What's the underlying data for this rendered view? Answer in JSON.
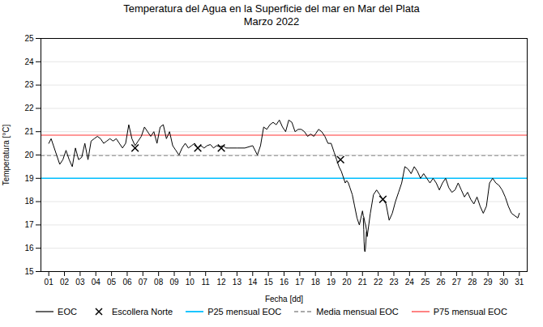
{
  "chart_data": {
    "type": "line",
    "title": "Temperatura del Agua en la Superficie del mar en Mar del Plata\nMarzo 2022",
    "xlabel": "Fecha [dd]",
    "ylabel": "Temperatura [°C]",
    "xlim": [
      0.5,
      31.5
    ],
    "ylim": [
      15,
      25
    ],
    "xticks": [
      {
        "value": 1,
        "label": "01"
      },
      {
        "value": 2,
        "label": "02"
      },
      {
        "value": 3,
        "label": "03"
      },
      {
        "value": 4,
        "label": "04"
      },
      {
        "value": 5,
        "label": "05"
      },
      {
        "value": 6,
        "label": "06"
      },
      {
        "value": 7,
        "label": "07"
      },
      {
        "value": 8,
        "label": "08"
      },
      {
        "value": 9,
        "label": "09"
      },
      {
        "value": 10,
        "label": "10"
      },
      {
        "value": 11,
        "label": "11"
      },
      {
        "value": 12,
        "label": "12"
      },
      {
        "value": 13,
        "label": "13"
      },
      {
        "value": 14,
        "label": "14"
      },
      {
        "value": 15,
        "label": "15"
      },
      {
        "value": 16,
        "label": "16"
      },
      {
        "value": 17,
        "label": "17"
      },
      {
        "value": 18,
        "label": "18"
      },
      {
        "value": 19,
        "label": "19"
      },
      {
        "value": 20,
        "label": "20"
      },
      {
        "value": 21,
        "label": "21"
      },
      {
        "value": 22,
        "label": "22"
      },
      {
        "value": 23,
        "label": "23"
      },
      {
        "value": 24,
        "label": "24"
      },
      {
        "value": 25,
        "label": "25"
      },
      {
        "value": 26,
        "label": "26"
      },
      {
        "value": 27,
        "label": "27"
      },
      {
        "value": 28,
        "label": "28"
      },
      {
        "value": 29,
        "label": "29"
      },
      {
        "value": 30,
        "label": "30"
      },
      {
        "value": 31,
        "label": "31"
      }
    ],
    "yticks": [
      15,
      16,
      17,
      18,
      19,
      20,
      21,
      22,
      23,
      24,
      25
    ],
    "grid": "y",
    "legend": "bottom",
    "series": [
      {
        "name": "EOC",
        "type": "line",
        "color": "#000000",
        "x": [
          1.0,
          1.15,
          1.3,
          1.5,
          1.7,
          1.9,
          2.1,
          2.3,
          2.5,
          2.7,
          2.9,
          3.1,
          3.3,
          3.5,
          3.7,
          3.9,
          4.1,
          4.3,
          4.5,
          4.7,
          4.9,
          5.1,
          5.3,
          5.5,
          5.7,
          5.9,
          6.1,
          6.3,
          6.5,
          6.7,
          6.9,
          7.1,
          7.3,
          7.5,
          7.7,
          7.9,
          8.1,
          8.3,
          8.5,
          8.7,
          8.9,
          9.1,
          9.3,
          9.5,
          9.7,
          9.9,
          10.1,
          10.3,
          10.5,
          10.7,
          10.9,
          11.1,
          11.3,
          11.5,
          11.7,
          11.9,
          12.1,
          12.3,
          12.5,
          13.0,
          13.5,
          14.0,
          14.3,
          14.5,
          14.7,
          14.9,
          15.1,
          15.3,
          15.5,
          15.7,
          15.9,
          16.1,
          16.3,
          16.5,
          16.7,
          16.9,
          17.1,
          17.3,
          17.5,
          17.7,
          17.9,
          18.0,
          18.2,
          18.4,
          18.6,
          18.8,
          19.0,
          19.2,
          19.35,
          19.5,
          19.65,
          19.8,
          19.9,
          20.0,
          20.1,
          20.2,
          20.35,
          20.5,
          20.65,
          20.8,
          20.9,
          21.0,
          21.05,
          21.1,
          21.15,
          21.2,
          21.25,
          21.3,
          21.4,
          21.5,
          21.7,
          21.9,
          22.1,
          22.3,
          22.5,
          22.7,
          22.9,
          23.1,
          23.3,
          23.5,
          23.7,
          23.9,
          24.1,
          24.3,
          24.5,
          24.7,
          24.9,
          25.1,
          25.3,
          25.5,
          25.7,
          25.9,
          26.1,
          26.3,
          26.5,
          26.7,
          26.9,
          27.1,
          27.3,
          27.5,
          27.7,
          27.9,
          28.1,
          28.3,
          28.5,
          28.7,
          28.9,
          29.1,
          29.3,
          29.5,
          29.7,
          29.9,
          30.1,
          30.3,
          30.5,
          30.7,
          30.9,
          31.0
        ],
        "values": [
          20.5,
          20.7,
          20.4,
          20.0,
          19.6,
          19.8,
          20.2,
          19.8,
          19.5,
          20.3,
          19.8,
          19.9,
          20.5,
          19.8,
          20.6,
          20.7,
          20.8,
          20.7,
          20.5,
          20.6,
          20.7,
          20.6,
          20.7,
          20.5,
          20.3,
          20.5,
          21.3,
          20.7,
          20.4,
          20.6,
          20.8,
          21.2,
          21.0,
          20.8,
          21.0,
          20.5,
          21.2,
          21.3,
          20.7,
          21.0,
          20.4,
          20.2,
          20.0,
          20.3,
          20.5,
          20.3,
          20.4,
          20.5,
          20.3,
          20.4,
          20.3,
          20.4,
          20.45,
          20.3,
          20.4,
          20.35,
          20.4,
          20.3,
          20.3,
          20.3,
          20.3,
          20.4,
          20.0,
          20.4,
          21.2,
          21.1,
          21.3,
          21.4,
          21.3,
          21.5,
          21.2,
          21.0,
          21.5,
          21.4,
          21.0,
          21.1,
          21.1,
          21.0,
          20.8,
          20.9,
          20.8,
          20.9,
          21.1,
          21.0,
          20.8,
          20.5,
          20.5,
          20.1,
          19.8,
          19.5,
          19.3,
          19.0,
          18.8,
          18.9,
          18.8,
          18.6,
          18.3,
          17.8,
          17.3,
          17.0,
          17.3,
          17.6,
          17.4,
          17.3,
          17.1,
          17.0,
          16.8,
          16.5,
          17.0,
          17.5,
          18.3,
          18.5,
          18.3,
          18.1,
          17.9,
          17.2,
          17.5,
          18.0,
          18.4,
          18.8,
          19.5,
          19.4,
          19.2,
          19.5,
          19.3,
          19.0,
          19.2,
          19.0,
          18.8,
          19.0,
          18.8,
          18.5,
          18.8,
          19.0,
          18.6,
          18.4,
          18.5,
          18.8,
          18.5,
          18.2,
          18.4,
          18.1,
          17.9,
          18.2,
          17.8,
          17.5,
          17.8,
          18.8,
          19.0,
          18.8,
          18.7,
          18.5,
          18.2,
          17.8,
          17.5,
          17.4,
          17.3,
          17.5
        ]
      },
      {
        "type": "line",
        "color": "#000000",
        "x": [
          21.05,
          21.08,
          21.1,
          21.13,
          21.16,
          21.19,
          21.22,
          21.25
        ],
        "values": [
          17.3,
          16.8,
          16.3,
          15.9,
          15.85,
          16.0,
          16.3,
          16.7
        ]
      },
      {
        "name": "Escollera Norte",
        "type": "scatter",
        "marker": "x",
        "color": "#000000",
        "x": [
          6.5,
          10.5,
          12.0,
          19.6,
          22.3
        ],
        "values": [
          20.3,
          20.3,
          20.3,
          19.8,
          18.1
        ]
      },
      {
        "name": "P25 mensual EOC",
        "type": "hline",
        "color": "#00BFFF",
        "values": [
          19.0
        ]
      },
      {
        "name": "Media mensual EOC",
        "type": "hline",
        "color": "#AAAAAA",
        "line_style": "dashed",
        "values": [
          19.97
        ]
      },
      {
        "name": "P75 mensual EOC",
        "type": "hline",
        "color": "#FF7777",
        "values": [
          20.85
        ]
      }
    ]
  }
}
